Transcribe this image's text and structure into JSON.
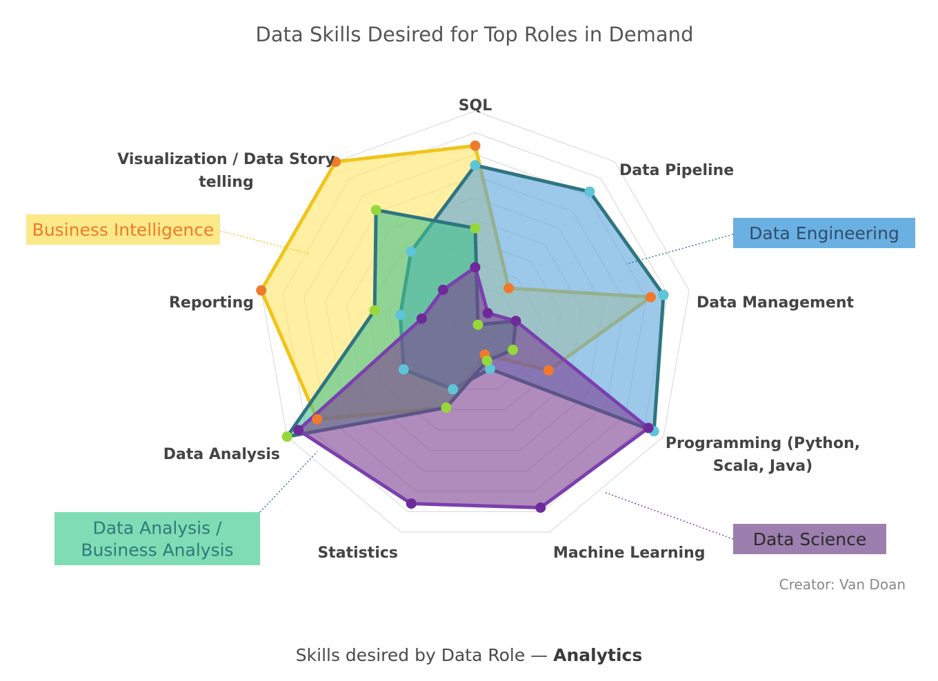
{
  "chart_data": {
    "type": "radar",
    "title": "Data Skills Desired for Top Roles in Demand",
    "axes": [
      "SQL",
      "Data Pipeline",
      "Data Management",
      "Programming (Python, Scala, Java)",
      "Machine Learning",
      "Statistics",
      "Data Analysis",
      "Reporting",
      "Visualization / Data Story telling"
    ],
    "range": [
      0,
      10
    ],
    "rings": 10,
    "series": [
      {
        "name": "Business Intelligence",
        "fill": "#ffe566",
        "stroke": "#f0c419",
        "marker": "#f07a2c",
        "label_bg": "#fbe98a",
        "label_color": "#f07a2c",
        "values": [
          8.4,
          2.4,
          8.2,
          3.9,
          1.3,
          3.9,
          8.4,
          10.0,
          10.0
        ]
      },
      {
        "name": "Data Engineering",
        "fill": "#5aa3dc",
        "stroke": "#2e7580",
        "marker": "#5ec4d8",
        "label_bg": "#6bb0e3",
        "label_color": "#2e4e6e",
        "values": [
          7.5,
          8.2,
          8.8,
          9.5,
          2.0,
          3.0,
          3.8,
          3.5,
          4.6
        ]
      },
      {
        "name": "Data Analysis / Business Analysis",
        "fill": "#44c28c",
        "stroke": "#2e7580",
        "marker": "#96d83a",
        "label_bg": "#7fdcb4",
        "label_color": "#2e7a7a",
        "values": [
          4.6,
          0.2,
          1.9,
          2.0,
          1.6,
          3.9,
          10.0,
          4.7,
          7.1
        ]
      },
      {
        "name": "Data Science",
        "fill": "#7b3f8f",
        "stroke": "#7b3fae",
        "marker": "#6e2a9a",
        "label_bg": "#9c7fae",
        "label_color": "#2a2a2a",
        "values": [
          2.8,
          0.9,
          1.9,
          9.2,
          8.8,
          8.6,
          9.4,
          2.5,
          2.3
        ]
      }
    ]
  },
  "annotations": {
    "creator": "Creator: Van Doan"
  },
  "caption": {
    "prefix": "Skills desired by Data Role — ",
    "bold": "Analytics"
  }
}
